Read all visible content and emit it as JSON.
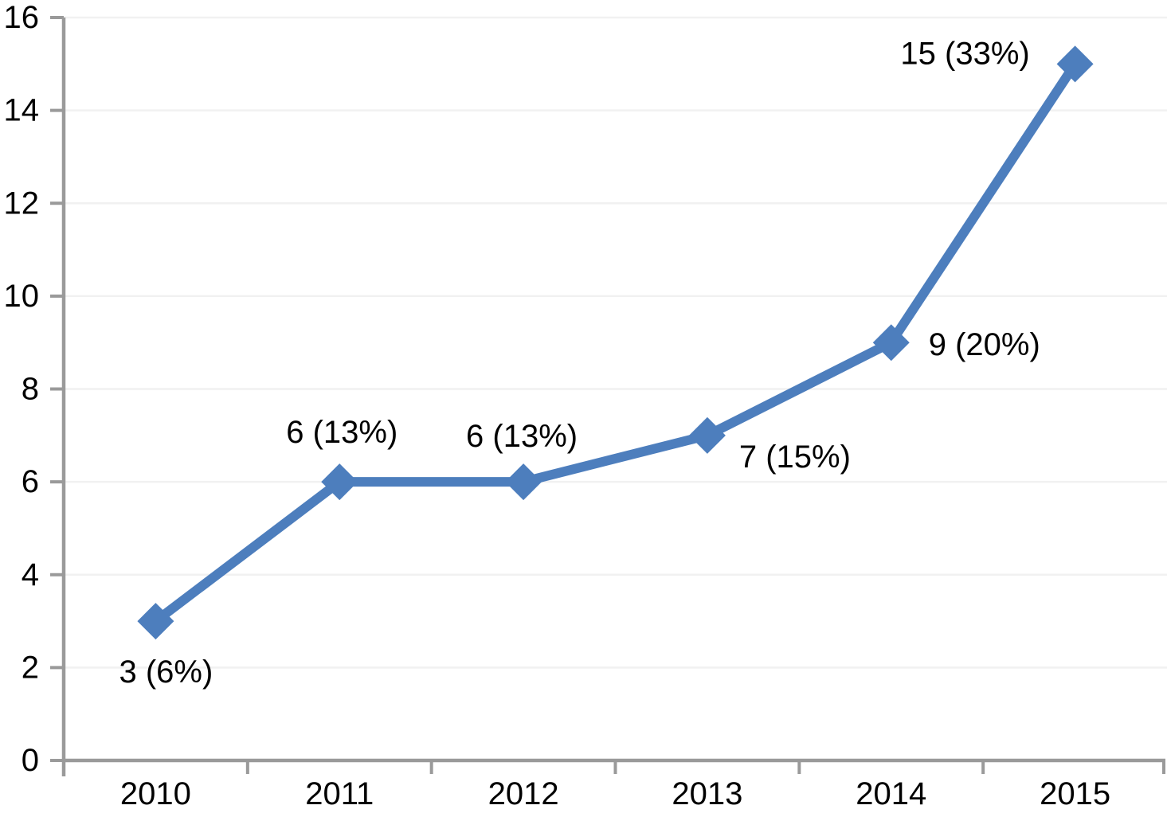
{
  "chart_data": {
    "type": "line",
    "title": "",
    "xlabel": "",
    "ylabel": "",
    "categories": [
      "2010",
      "2011",
      "2012",
      "2013",
      "2014",
      "2015"
    ],
    "values": [
      3,
      6,
      6,
      7,
      9,
      15
    ],
    "point_labels": [
      "3 (6%)",
      "6 (13%)",
      "6 (13%)",
      "7 (15%)",
      "9 (20%)",
      "15 (33%)"
    ],
    "ylim": [
      0,
      16
    ],
    "yticks": [
      0,
      2,
      4,
      6,
      8,
      10,
      12,
      14,
      16
    ],
    "grid": "horizontal-light",
    "legend": "none",
    "marker_shape": "diamond",
    "colors": {
      "series": "#4d7ebd",
      "axis": "#9a9a9a",
      "gridline": "#f1f1f1",
      "text": "#000000",
      "background": "#ffffff"
    }
  }
}
